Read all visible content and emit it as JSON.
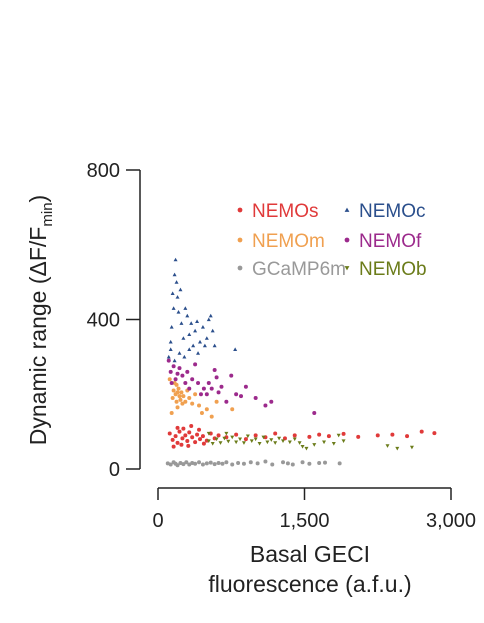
{
  "chart_data": {
    "type": "scatter",
    "title": "",
    "xlabel_lines": [
      "Basal GECI",
      "fluorescence (a.f.u.)"
    ],
    "ylabel": "Dynamic range (ΔF/F",
    "ylabel_sub": "min",
    "ylabel_close": ")",
    "xlim": [
      0,
      3000
    ],
    "ylim": [
      0,
      800
    ],
    "xticks": [
      0,
      1500,
      3000
    ],
    "xtick_labels": [
      "0",
      "1,500",
      "3,000"
    ],
    "yticks": [
      0,
      400,
      800
    ],
    "ytick_labels": [
      "0",
      "400",
      "800"
    ],
    "grid": false,
    "legend_position": "top-right",
    "series": [
      {
        "name": "NEMOs",
        "color": "#e03a3a",
        "marker": "circle",
        "points": [
          [
            120,
            95
          ],
          [
            150,
            78
          ],
          [
            180,
            88
          ],
          [
            200,
            70
          ],
          [
            220,
            100
          ],
          [
            250,
            82
          ],
          [
            280,
            90
          ],
          [
            300,
            75
          ],
          [
            320,
            98
          ],
          [
            350,
            85
          ],
          [
            380,
            72
          ],
          [
            400,
            92
          ],
          [
            430,
            80
          ],
          [
            460,
            88
          ],
          [
            500,
            76
          ],
          [
            540,
            95
          ],
          [
            580,
            82
          ],
          [
            620,
            90
          ],
          [
            200,
            110
          ],
          [
            260,
            108
          ],
          [
            340,
            115
          ],
          [
            420,
            105
          ],
          [
            700,
            85
          ],
          [
            800,
            92
          ],
          [
            900,
            80
          ],
          [
            1000,
            90
          ],
          [
            1100,
            85
          ],
          [
            1200,
            95
          ],
          [
            1300,
            82
          ],
          [
            1400,
            90
          ],
          [
            1550,
            86
          ],
          [
            1650,
            92
          ],
          [
            1750,
            88
          ],
          [
            1900,
            94
          ],
          [
            2050,
            86
          ],
          [
            2250,
            90
          ],
          [
            2400,
            92
          ],
          [
            2550,
            88
          ],
          [
            2700,
            100
          ],
          [
            2830,
            96
          ],
          [
            160,
            60
          ],
          [
            240,
            65
          ],
          [
            310,
            62
          ],
          [
            470,
            68
          ]
        ]
      },
      {
        "name": "NEMOc",
        "color": "#2b4f8c",
        "marker": "triangle-up",
        "points": [
          [
            110,
            300
          ],
          [
            130,
            340
          ],
          [
            140,
            380
          ],
          [
            160,
            430
          ],
          [
            150,
            470
          ],
          [
            170,
            520
          ],
          [
            180,
            560
          ],
          [
            190,
            500
          ],
          [
            200,
            460
          ],
          [
            210,
            420
          ],
          [
            230,
            480
          ],
          [
            240,
            390
          ],
          [
            260,
            350
          ],
          [
            280,
            430
          ],
          [
            300,
            410
          ],
          [
            320,
            360
          ],
          [
            340,
            390
          ],
          [
            360,
            330
          ],
          [
            380,
            370
          ],
          [
            400,
            395
          ],
          [
            430,
            340
          ],
          [
            460,
            380
          ],
          [
            500,
            350
          ],
          [
            520,
            400
          ],
          [
            540,
            410
          ],
          [
            560,
            370
          ],
          [
            580,
            330
          ],
          [
            130,
            320
          ],
          [
            170,
            290
          ],
          [
            220,
            310
          ],
          [
            270,
            300
          ],
          [
            320,
            320
          ],
          [
            410,
            310
          ],
          [
            480,
            330
          ],
          [
            790,
            320
          ]
        ]
      },
      {
        "name": "NEMOm",
        "color": "#f0a050",
        "marker": "circle",
        "points": [
          [
            150,
            190
          ],
          [
            160,
            210
          ],
          [
            170,
            230
          ],
          [
            180,
            200
          ],
          [
            190,
            180
          ],
          [
            200,
            205
          ],
          [
            210,
            215
          ],
          [
            220,
            195
          ],
          [
            230,
            185
          ],
          [
            240,
            205
          ],
          [
            250,
            175
          ],
          [
            190,
            225
          ],
          [
            200,
            165
          ],
          [
            260,
            195
          ],
          [
            280,
            180
          ],
          [
            300,
            210
          ],
          [
            320,
            190
          ],
          [
            350,
            175
          ],
          [
            380,
            200
          ],
          [
            420,
            170
          ],
          [
            450,
            150
          ],
          [
            500,
            160
          ],
          [
            550,
            140
          ],
          [
            600,
            180
          ],
          [
            120,
            240
          ],
          [
            140,
            150
          ],
          [
            760,
            160
          ]
        ]
      },
      {
        "name": "NEMOf",
        "color": "#9c2a8c",
        "marker": "circle",
        "points": [
          [
            110,
            290
          ],
          [
            130,
            260
          ],
          [
            140,
            230
          ],
          [
            160,
            275
          ],
          [
            180,
            240
          ],
          [
            200,
            255
          ],
          [
            220,
            270
          ],
          [
            250,
            250
          ],
          [
            280,
            230
          ],
          [
            300,
            260
          ],
          [
            320,
            215
          ],
          [
            350,
            240
          ],
          [
            380,
            280
          ],
          [
            410,
            230
          ],
          [
            440,
            200
          ],
          [
            470,
            215
          ],
          [
            500,
            200
          ],
          [
            520,
            230
          ],
          [
            550,
            215
          ],
          [
            580,
            265
          ],
          [
            600,
            245
          ],
          [
            620,
            205
          ],
          [
            650,
            220
          ],
          [
            700,
            180
          ],
          [
            750,
            250
          ],
          [
            800,
            200
          ],
          [
            850,
            195
          ],
          [
            900,
            220
          ],
          [
            1000,
            190
          ],
          [
            1100,
            170
          ],
          [
            1160,
            180
          ],
          [
            1600,
            150
          ]
        ]
      },
      {
        "name": "GCaMP6m",
        "color": "#999999",
        "marker": "circle",
        "points": [
          [
            100,
            15
          ],
          [
            130,
            12
          ],
          [
            160,
            18
          ],
          [
            180,
            14
          ],
          [
            200,
            10
          ],
          [
            230,
            16
          ],
          [
            260,
            13
          ],
          [
            290,
            18
          ],
          [
            320,
            12
          ],
          [
            350,
            16
          ],
          [
            380,
            14
          ],
          [
            420,
            18
          ],
          [
            460,
            12
          ],
          [
            500,
            15
          ],
          [
            540,
            17
          ],
          [
            580,
            13
          ],
          [
            620,
            16
          ],
          [
            660,
            14
          ],
          [
            700,
            18
          ],
          [
            760,
            12
          ],
          [
            820,
            16
          ],
          [
            880,
            14
          ],
          [
            950,
            18
          ],
          [
            1020,
            15
          ],
          [
            1100,
            20
          ],
          [
            1170,
            12
          ],
          [
            1280,
            18
          ],
          [
            1330,
            15
          ],
          [
            1380,
            12
          ],
          [
            1480,
            18
          ],
          [
            1550,
            14
          ],
          [
            1650,
            16
          ],
          [
            1710,
            17
          ],
          [
            1860,
            15
          ]
        ]
      },
      {
        "name": "NEMOb",
        "color": "#6b7c1a",
        "marker": "triangle-down",
        "points": [
          [
            520,
            75
          ],
          [
            560,
            68
          ],
          [
            600,
            80
          ],
          [
            640,
            70
          ],
          [
            680,
            82
          ],
          [
            720,
            74
          ],
          [
            760,
            85
          ],
          [
            800,
            72
          ],
          [
            840,
            80
          ],
          [
            880,
            70
          ],
          [
            920,
            88
          ],
          [
            960,
            75
          ],
          [
            1000,
            80
          ],
          [
            1040,
            68
          ],
          [
            1080,
            85
          ],
          [
            1120,
            72
          ],
          [
            1160,
            78
          ],
          [
            1200,
            70
          ],
          [
            1240,
            82
          ],
          [
            1280,
            75
          ],
          [
            1350,
            72
          ],
          [
            1400,
            80
          ],
          [
            1450,
            70
          ],
          [
            1480,
            60
          ],
          [
            1520,
            55
          ],
          [
            1600,
            65
          ],
          [
            1700,
            72
          ],
          [
            1800,
            68
          ],
          [
            1850,
            90
          ],
          [
            1900,
            75
          ],
          [
            2350,
            62
          ],
          [
            2450,
            55
          ],
          [
            2600,
            58
          ],
          [
            520,
            95
          ],
          [
            700,
            95
          ]
        ]
      }
    ]
  }
}
